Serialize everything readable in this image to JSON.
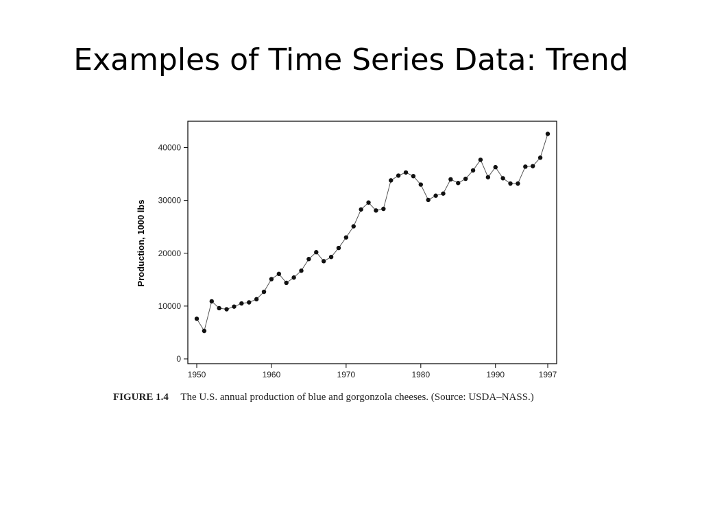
{
  "slide": {
    "title": "Examples of Time Series Data: Trend"
  },
  "figure": {
    "label": "FIGURE 1.4",
    "caption": "The U.S. annual production of blue and gorgonzola cheeses. (Source: USDA–NASS.)"
  },
  "colors": {
    "line": "#555555",
    "marker": "#111111",
    "axis": "#000000"
  },
  "chart_data": {
    "type": "line",
    "title": "",
    "xlabel": "",
    "ylabel": "Production, 1000 lbs",
    "xlim": [
      1950,
      1997
    ],
    "ylim": [
      0,
      45000
    ],
    "x_ticks": [
      1950,
      1960,
      1970,
      1980,
      1990,
      1997
    ],
    "y_ticks": [
      0,
      10000,
      20000,
      30000,
      40000
    ],
    "grid": false,
    "legend": "none",
    "markers": true,
    "series": [
      {
        "x": [
          1950,
          1951,
          1952,
          1953,
          1954,
          1955,
          1956,
          1957,
          1958,
          1959,
          1960,
          1961,
          1962,
          1963,
          1964,
          1965,
          1966,
          1967,
          1968,
          1969,
          1970,
          1971,
          1972,
          1973,
          1974,
          1975,
          1976,
          1977,
          1978,
          1979,
          1980,
          1981,
          1982,
          1983,
          1984,
          1985,
          1986,
          1987,
          1988,
          1989,
          1990,
          1991,
          1992,
          1993,
          1994,
          1995,
          1996,
          1997
        ],
        "y": [
          7600,
          5300,
          10900,
          9600,
          9400,
          9900,
          10500,
          10700,
          11300,
          12700,
          15100,
          16100,
          14400,
          15400,
          16700,
          18900,
          20200,
          18500,
          19300,
          21000,
          23000,
          25100,
          28300,
          29600,
          28100,
          28400,
          33800,
          34700,
          35300,
          34600,
          33000,
          30100,
          30900,
          31300,
          34000,
          33300,
          34100,
          35700,
          37700,
          34400,
          36300,
          34200,
          33200,
          33200,
          36400,
          36500,
          38100,
          42600
        ]
      }
    ]
  }
}
